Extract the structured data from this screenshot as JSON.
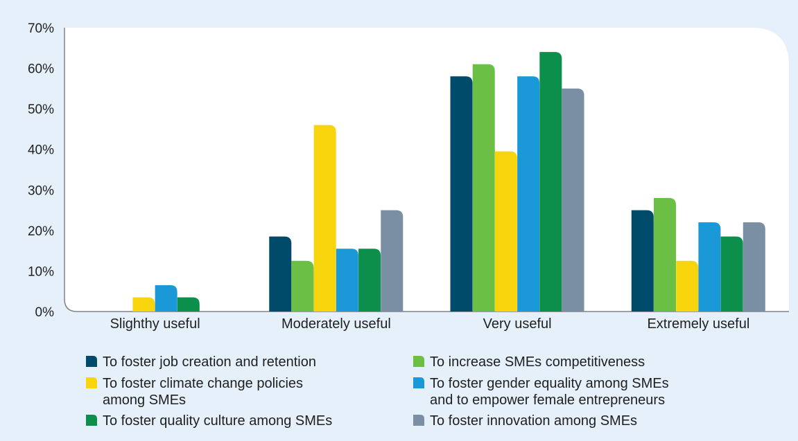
{
  "chart_data": {
    "type": "bar",
    "categories": [
      "Slighthy useful",
      "Moderately useful",
      "Very useful",
      "Extremely useful"
    ],
    "y_ticks": [
      "0%",
      "10%",
      "20%",
      "30%",
      "40%",
      "50%",
      "60%",
      "70%"
    ],
    "ylim": [
      0,
      70
    ],
    "grid": false,
    "legend_position": "bottom",
    "series": [
      {
        "name": "To foster job creation and retention",
        "legend_lines": [
          "To foster job creation and retention"
        ],
        "color": "#004a6a",
        "values": [
          0,
          18.5,
          58,
          25
        ]
      },
      {
        "name": "To increase SMEs competitiveness",
        "legend_lines": [
          "To increase SMEs competitiveness"
        ],
        "color": "#6cbf45",
        "values": [
          0,
          12.5,
          61,
          28
        ]
      },
      {
        "name": "To foster climate change policies among SMEs",
        "legend_lines": [
          "To foster climate change policies",
          "among SMEs"
        ],
        "color": "#f7d40b",
        "values": [
          3.5,
          46,
          39.5,
          12.5
        ]
      },
      {
        "name": "To foster gender equality among SMEs and to empower female entrepreneurs",
        "legend_lines": [
          "To foster gender equality among SMEs",
          "and to empower female entrepreneurs"
        ],
        "color": "#1b98d8",
        "values": [
          6.5,
          15.5,
          58,
          22
        ]
      },
      {
        "name": "To foster quality culture among SMEs",
        "legend_lines": [
          "To foster quality culture among SMEs"
        ],
        "color": "#0b8f4a",
        "values": [
          3.5,
          15.5,
          64,
          18.5
        ]
      },
      {
        "name": "To foster innovation among SMEs",
        "legend_lines": [
          "To foster innovation among SMEs"
        ],
        "color": "#7a8fa3",
        "values": [
          0,
          25,
          55,
          22
        ]
      }
    ]
  },
  "colors": {
    "frame_background": "#e6f0fa",
    "plot_background": "#ffffff",
    "axis": "#7f8386"
  }
}
